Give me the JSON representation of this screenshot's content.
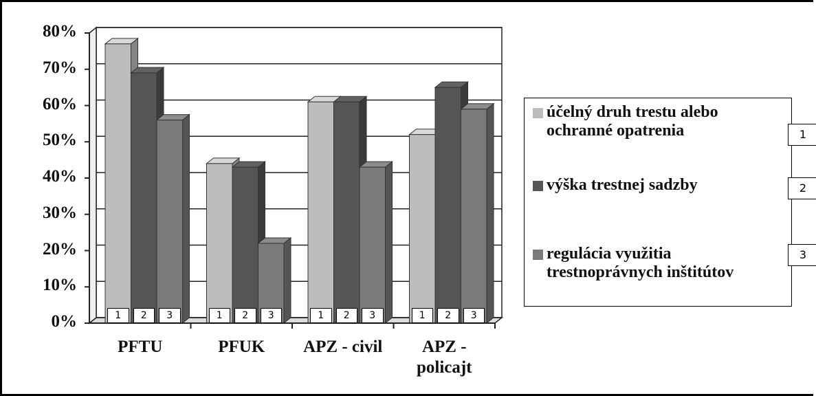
{
  "chart_data": {
    "type": "bar3d",
    "categories": [
      "PFTU",
      "PFUK",
      "APZ - civil",
      "APZ - policajt"
    ],
    "series": [
      {
        "name": "účelný druh trestu alebo ochranné opatrenia",
        "color": "#bdbdbd",
        "values": [
          77,
          44,
          61,
          52
        ]
      },
      {
        "name": "výška trestnej sadzby",
        "color": "#555555",
        "values": [
          69,
          43,
          61,
          65
        ]
      },
      {
        "name": "regulácia využitia trestnoprávnych inštitútov",
        "color": "#7a7a7a",
        "values": [
          56,
          22,
          43,
          59
        ]
      }
    ],
    "series_markers": [
      "1",
      "2",
      "3"
    ],
    "ylim": [
      0,
      80
    ],
    "yticks": [
      {
        "value": 0,
        "label": "0%"
      },
      {
        "value": 10,
        "label": "10%"
      },
      {
        "value": 20,
        "label": "20%"
      },
      {
        "value": 30,
        "label": "30%"
      },
      {
        "value": 40,
        "label": "40%"
      },
      {
        "value": 50,
        "label": "50%"
      },
      {
        "value": 60,
        "label": "60%"
      },
      {
        "value": 70,
        "label": "70%"
      },
      {
        "value": 80,
        "label": "80%"
      }
    ],
    "grid": true
  }
}
